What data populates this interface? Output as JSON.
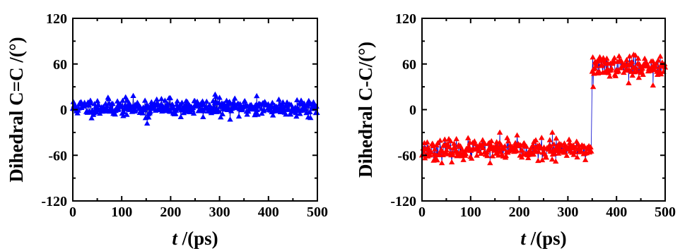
{
  "chart_data": [
    {
      "type": "scatter",
      "title": "",
      "xlabel_italic": "t",
      "xlabel_rest": " /(ps)",
      "ylabel": "Dihedral C=C /(°)",
      "xlim": [
        0,
        500
      ],
      "ylim": [
        -120,
        120
      ],
      "xticks": [
        "0",
        "100",
        "200",
        "300",
        "400",
        "500"
      ],
      "yticks": [
        "-120",
        "-60",
        "0",
        "60",
        "120"
      ],
      "grid": false,
      "marker": "triangle-up",
      "series": [
        {
          "color": "#0000ff",
          "line_color": "#0000aa",
          "segments": [
            {
              "x_start": 0,
              "x_end": 500,
              "mean": 3,
              "spread": 8,
              "seed": 11
            }
          ],
          "outliers": [
            [
              152,
              -18
            ],
            [
              291,
              20
            ],
            [
              376,
              18
            ],
            [
              155,
              -10
            ]
          ]
        }
      ]
    },
    {
      "type": "scatter",
      "title": "",
      "xlabel_italic": "t",
      "xlabel_rest": " /(ps)",
      "ylabel": "Dihedral C-C/(°)",
      "xlim": [
        0,
        500
      ],
      "ylim": [
        -120,
        120
      ],
      "xticks": [
        "0",
        "100",
        "200",
        "300",
        "400",
        "500"
      ],
      "yticks": [
        "-120",
        "-60",
        "0",
        "60",
        "120"
      ],
      "grid": false,
      "marker": "triangle-up",
      "series": [
        {
          "color": "#ff0000",
          "line_color": "#0000cc",
          "segments": [
            {
              "x_start": 0,
              "x_end": 348,
              "mean": -53,
              "spread": 9,
              "seed": 23
            },
            {
              "x_start": 350,
              "x_end": 500,
              "mean": 57,
              "spread": 9,
              "seed": 37
            }
          ],
          "outliers": [
            [
              160,
              -30
            ],
            [
              268,
              -30
            ],
            [
              275,
              -68
            ],
            [
              140,
              -70
            ],
            [
              490,
              70
            ],
            [
              475,
              32
            ],
            [
              352,
              30
            ],
            [
              425,
              35
            ]
          ]
        }
      ]
    }
  ]
}
